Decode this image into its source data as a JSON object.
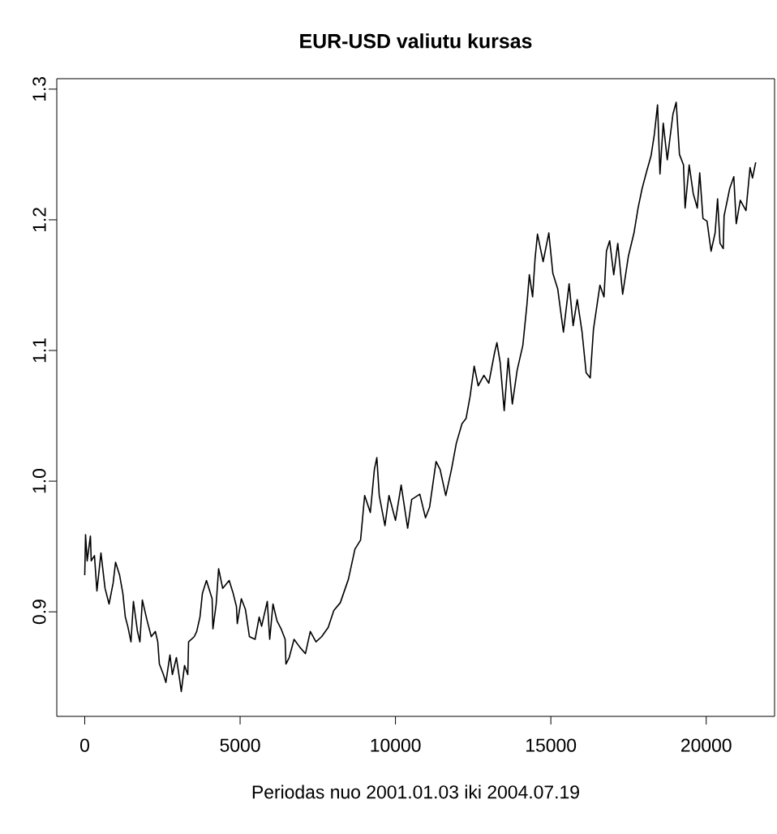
{
  "chart_data": {
    "type": "line",
    "title": "EUR-USD valiutu kursas",
    "xlabel": "Periodas nuo 2001.01.03 iki 2004.07.19",
    "color": "#000000",
    "xlim": [
      -900,
      22200
    ],
    "ylim": [
      0.82,
      1.308
    ],
    "xticks": [
      0,
      5000,
      10000,
      15000,
      20000
    ],
    "yticks": [
      0.9,
      {
        "value": 1.0,
        "label": "1.0"
      },
      1.1,
      1.2,
      1.3
    ],
    "x": [
      0,
      26,
      78,
      183,
      209,
      313,
      392,
      522,
      653,
      783,
      914,
      992,
      1123,
      1227,
      1306,
      1384,
      1488,
      1567,
      1697,
      1775,
      1854,
      2010,
      2141,
      2272,
      2350,
      2402,
      2533,
      2611,
      2742,
      2820,
      2950,
      3055,
      3107,
      3212,
      3316,
      3342,
      3525,
      3603,
      3708,
      3786,
      3917,
      4099,
      4125,
      4230,
      4308,
      4439,
      4648,
      4778,
      4883,
      4909,
      5039,
      5170,
      5300,
      5483,
      5614,
      5692,
      5875,
      5953,
      6058,
      6188,
      6319,
      6449,
      6475,
      6580,
      6736,
      6919,
      7102,
      7259,
      7441,
      7624,
      7833,
      8016,
      8225,
      8486,
      8695,
      8877,
      9008,
      9191,
      9321,
      9400,
      9478,
      9661,
      9791,
      10000,
      10183,
      10392,
      10522,
      10783,
      10966,
      11097,
      11306,
      11436,
      11619,
      11802,
      11958,
      12141,
      12272,
      12402,
      12533,
      12663,
      12846,
      13003,
      13186,
      13264,
      13368,
      13499,
      13629,
      13760,
      13917,
      14099,
      14230,
      14308,
      14413,
      14491,
      14570,
      14752,
      14935,
      15065,
      15222,
      15405,
      15588,
      15718,
      15849,
      16005,
      16136,
      16267,
      16371,
      16580,
      16710,
      16789,
      16893,
      17024,
      17154,
      17311,
      17494,
      17676,
      17807,
      17938,
      18094,
      18225,
      18329,
      18434,
      18512,
      18617,
      18747,
      18930,
      19034,
      19139,
      19269,
      19321,
      19452,
      19583,
      19713,
      19791,
      19896,
      20026,
      20157,
      20287,
      20366,
      20444,
      20548,
      20575,
      20757,
      20888,
      20966,
      21097,
      21280,
      21410,
      21489,
      21593
    ],
    "values": [
      0.928,
      0.959,
      0.939,
      0.958,
      0.939,
      0.943,
      0.916,
      0.945,
      0.918,
      0.906,
      0.922,
      0.938,
      0.928,
      0.914,
      0.896,
      0.889,
      0.877,
      0.908,
      0.885,
      0.877,
      0.909,
      0.893,
      0.881,
      0.885,
      0.877,
      0.86,
      0.852,
      0.846,
      0.867,
      0.852,
      0.865,
      0.848,
      0.839,
      0.859,
      0.852,
      0.877,
      0.881,
      0.885,
      0.896,
      0.914,
      0.924,
      0.91,
      0.887,
      0.906,
      0.933,
      0.918,
      0.924,
      0.914,
      0.904,
      0.891,
      0.91,
      0.902,
      0.881,
      0.879,
      0.896,
      0.889,
      0.908,
      0.879,
      0.906,
      0.893,
      0.887,
      0.879,
      0.86,
      0.865,
      0.879,
      0.873,
      0.868,
      0.885,
      0.877,
      0.881,
      0.888,
      0.901,
      0.907,
      0.925,
      0.948,
      0.955,
      0.989,
      0.976,
      1.009,
      1.018,
      0.989,
      0.966,
      0.989,
      0.97,
      0.997,
      0.964,
      0.986,
      0.99,
      0.972,
      0.98,
      1.015,
      1.009,
      0.989,
      1.009,
      1.029,
      1.044,
      1.048,
      1.065,
      1.088,
      1.073,
      1.081,
      1.075,
      1.098,
      1.106,
      1.091,
      1.054,
      1.094,
      1.059,
      1.085,
      1.104,
      1.135,
      1.158,
      1.141,
      1.17,
      1.189,
      1.168,
      1.19,
      1.159,
      1.147,
      1.114,
      1.151,
      1.119,
      1.139,
      1.114,
      1.083,
      1.079,
      1.116,
      1.15,
      1.141,
      1.176,
      1.184,
      1.158,
      1.182,
      1.143,
      1.172,
      1.19,
      1.209,
      1.224,
      1.238,
      1.249,
      1.265,
      1.288,
      1.235,
      1.274,
      1.246,
      1.281,
      1.29,
      1.25,
      1.242,
      1.209,
      1.242,
      1.22,
      1.209,
      1.236,
      1.201,
      1.199,
      1.176,
      1.19,
      1.216,
      1.182,
      1.178,
      1.203,
      1.224,
      1.233,
      1.197,
      1.215,
      1.207,
      1.24,
      1.232,
      1.244
    ]
  }
}
